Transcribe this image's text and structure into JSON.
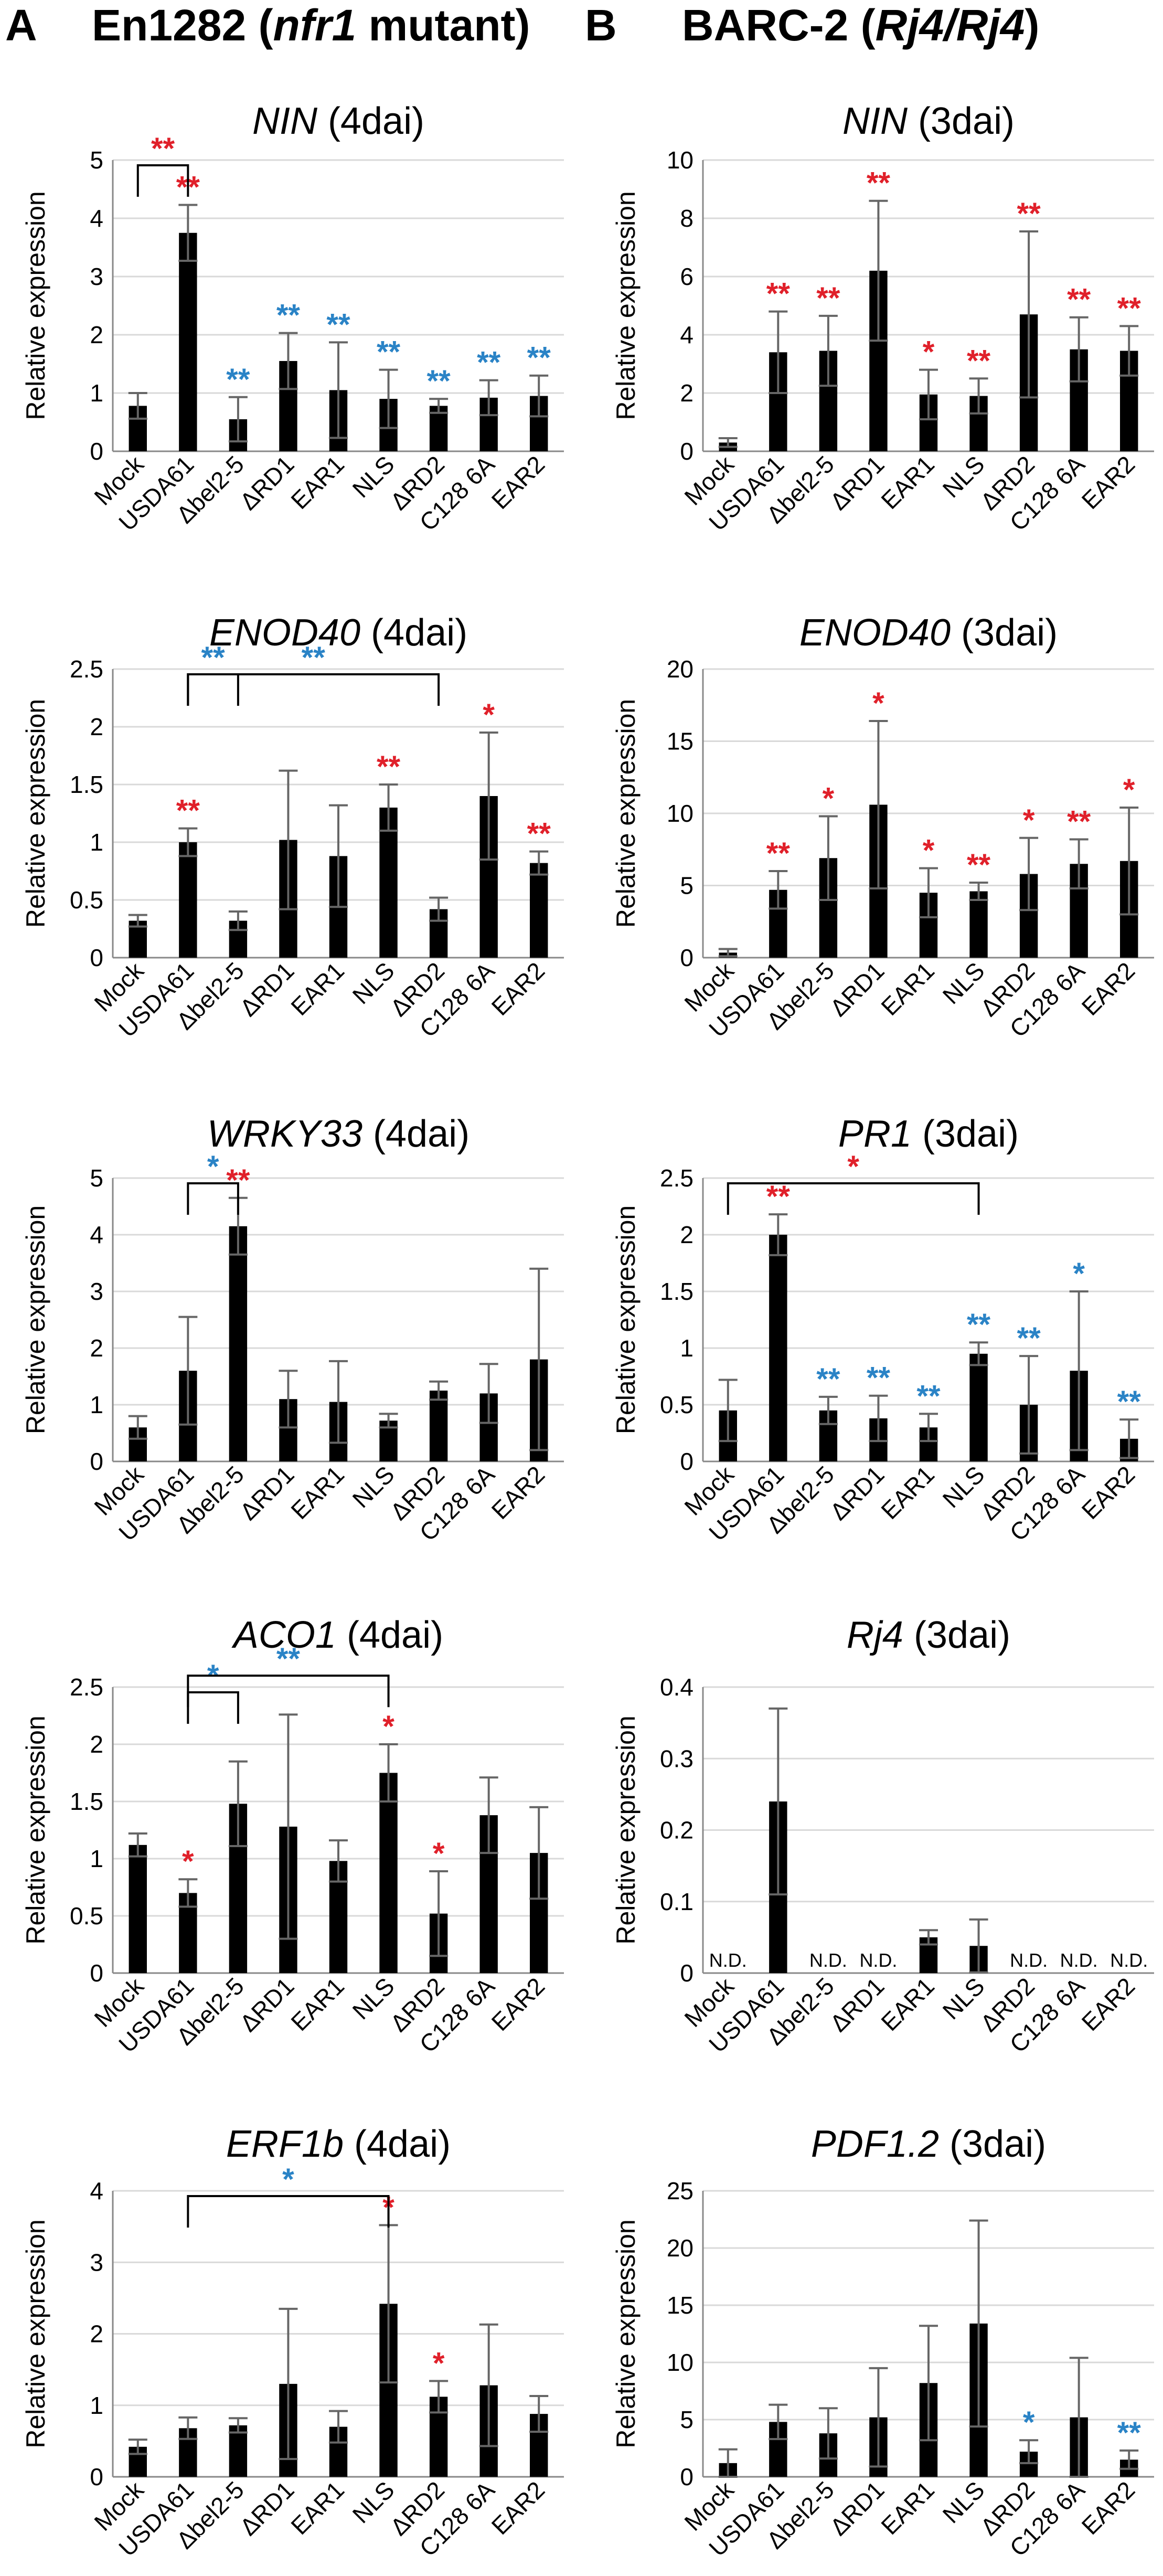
{
  "figure": {
    "panel_a": {
      "letter": "A",
      "title_pre": "En1282 (",
      "title_it": "nfr1",
      "title_post": " mutant)"
    },
    "panel_b": {
      "letter": "B",
      "title_pre": "BARC-2 (",
      "title_it": "Rj4/Rj4",
      "title_post": ")"
    }
  },
  "colors": {
    "bar": "#000000",
    "grid": "#d9d9d9",
    "sig_red": "#e0202a",
    "sig_blue": "#2a83c6",
    "err": "#666666",
    "axis": "#888888"
  },
  "ylabel": "Relative expression",
  "categories": [
    "Mock",
    "USDA61",
    "Δbel2-5",
    "ΔRD1",
    "EAR1",
    "NLS",
    "ΔRD2",
    "C128 6A",
    "EAR2"
  ],
  "chart_data": [
    {
      "id": "a1",
      "type": "bar",
      "gene": "NIN",
      "cond": " (4dai)",
      "title": "NIN (4dai)",
      "ylabel": "Relative expression",
      "categories": [
        "Mock",
        "USDA61",
        "Δbel2-5",
        "ΔRD1",
        "EAR1",
        "NLS",
        "ΔRD2",
        "C128 6A",
        "EAR2"
      ],
      "values": [
        0.78,
        3.75,
        0.55,
        1.55,
        1.05,
        0.9,
        0.78,
        0.92,
        0.95
      ],
      "err": [
        0.22,
        0.48,
        0.38,
        0.48,
        0.82,
        0.5,
        0.12,
        0.3,
        0.35
      ],
      "ylim": [
        0,
        5
      ],
      "yticks": [
        "0",
        "1",
        "2",
        "3",
        "4",
        "5"
      ],
      "sig": [
        "",
        "**",
        "**",
        "**",
        "**",
        "**",
        "**",
        "**",
        "**"
      ],
      "sig_color": [
        "",
        "red",
        "blue",
        "blue",
        "blue",
        "blue",
        "blue",
        "blue",
        "blue"
      ],
      "brackets": [
        {
          "from": 0,
          "to": 1,
          "level": 4.65,
          "text": "**",
          "color": "red"
        }
      ]
    },
    {
      "id": "b1",
      "type": "bar",
      "gene": "NIN",
      "cond": " (3dai)",
      "title": "NIN (3dai)",
      "ylabel": "Relative expression",
      "categories": [
        "Mock",
        "USDA61",
        "Δbel2-5",
        "ΔRD1",
        "EAR1",
        "NLS",
        "ΔRD2",
        "C128 6A",
        "EAR2"
      ],
      "values": [
        0.3,
        3.4,
        3.45,
        6.2,
        1.95,
        1.9,
        4.7,
        3.5,
        3.45
      ],
      "err": [
        0.15,
        1.4,
        1.2,
        2.4,
        0.85,
        0.6,
        2.85,
        1.1,
        0.85
      ],
      "ylim": [
        0,
        10
      ],
      "yticks": [
        "0",
        "2",
        "4",
        "6",
        "8",
        "10"
      ],
      "sig": [
        "",
        "**",
        "**",
        "**",
        "*",
        "**",
        "**",
        "**",
        "**"
      ],
      "sig_color": [
        "",
        "red",
        "red",
        "red",
        "red",
        "red",
        "red",
        "red",
        "red"
      ],
      "brackets": []
    },
    {
      "id": "a2",
      "type": "bar",
      "gene": "ENOD40",
      "cond": " (4dai)",
      "title": "ENOD40 (4dai)",
      "ylabel": "Relative expression",
      "categories": [
        "Mock",
        "USDA61",
        "Δbel2-5",
        "ΔRD1",
        "EAR1",
        "NLS",
        "ΔRD2",
        "C128 6A",
        "EAR2"
      ],
      "values": [
        0.32,
        1.0,
        0.32,
        1.02,
        0.88,
        1.3,
        0.42,
        1.4,
        0.82
      ],
      "err": [
        0.05,
        0.12,
        0.08,
        0.6,
        0.44,
        0.2,
        0.1,
        0.55,
        0.1
      ],
      "ylim": [
        0,
        2.5
      ],
      "yticks": [
        "0",
        "0.5",
        "1",
        "1.5",
        "2",
        "2.5"
      ],
      "sig": [
        "",
        "**",
        "",
        "",
        "",
        "**",
        "",
        "*",
        "**"
      ],
      "sig_color": [
        "",
        "red",
        "",
        "",
        "",
        "red",
        "",
        "red",
        "red"
      ],
      "brackets": [
        {
          "from": 1,
          "to": 2,
          "level": 1.88,
          "text": "**",
          "color": "blue"
        },
        {
          "from": 1,
          "to": 6,
          "level": 2.3,
          "text": "**",
          "color": "blue"
        }
      ]
    },
    {
      "id": "b2",
      "type": "bar",
      "gene": "ENOD40",
      "cond": " (3dai)",
      "title": "ENOD40 (3dai)",
      "ylabel": "Relative expression",
      "categories": [
        "Mock",
        "USDA61",
        "Δbel2-5",
        "ΔRD1",
        "EAR1",
        "NLS",
        "ΔRD2",
        "C128 6A",
        "EAR2"
      ],
      "values": [
        0.35,
        4.7,
        6.9,
        10.6,
        4.5,
        4.6,
        5.8,
        6.5,
        6.7
      ],
      "err": [
        0.25,
        1.3,
        2.9,
        5.8,
        1.7,
        0.6,
        2.5,
        1.7,
        3.7
      ],
      "ylim": [
        0,
        20
      ],
      "yticks": [
        "0",
        "5",
        "10",
        "15",
        "20"
      ],
      "sig": [
        "",
        "**",
        "*",
        "*",
        "*",
        "**",
        "*",
        "**",
        "*"
      ],
      "sig_color": [
        "",
        "red",
        "red",
        "red",
        "red",
        "red",
        "red",
        "red",
        "red"
      ],
      "brackets": []
    },
    {
      "id": "a3",
      "type": "bar",
      "gene": "WRKY33",
      "cond": " (4dai)",
      "title": "WRKY33 (4dai)",
      "ylabel": "Relative expression",
      "categories": [
        "Mock",
        "USDA61",
        "Δbel2-5",
        "ΔRD1",
        "EAR1",
        "NLS",
        "ΔRD2",
        "C128 6A",
        "EAR2"
      ],
      "values": [
        0.6,
        1.6,
        4.15,
        1.1,
        1.05,
        0.72,
        1.25,
        1.2,
        1.8
      ],
      "err": [
        0.2,
        0.95,
        0.5,
        0.5,
        0.72,
        0.12,
        0.16,
        0.52,
        1.6
      ],
      "ylim": [
        0,
        5
      ],
      "yticks": [
        "0",
        "1",
        "2",
        "3",
        "4",
        "5"
      ],
      "sig": [
        "",
        "",
        "**",
        "",
        "",
        "",
        "",
        "",
        ""
      ],
      "sig_color": [
        "",
        "",
        "red",
        "",
        "",
        "",
        "",
        "",
        ""
      ],
      "brackets": [
        {
          "from": 1,
          "to": 2,
          "level": 4.85,
          "text": "*",
          "color": "blue"
        }
      ]
    },
    {
      "id": "b3",
      "type": "bar",
      "gene": "PR1",
      "cond": " (3dai)",
      "title": "PR1 (3dai)",
      "ylabel": "Relative expression",
      "categories": [
        "Mock",
        "USDA61",
        "Δbel2-5",
        "ΔRD1",
        "EAR1",
        "NLS",
        "ΔRD2",
        "C128 6A",
        "EAR2"
      ],
      "values": [
        0.45,
        2.0,
        0.45,
        0.38,
        0.3,
        0.95,
        0.5,
        0.8,
        0.2
      ],
      "err": [
        0.27,
        0.18,
        0.12,
        0.2,
        0.12,
        0.1,
        0.43,
        0.7,
        0.17
      ],
      "ylim": [
        0,
        2.5
      ],
      "yticks": [
        "0",
        "0.5",
        "1",
        "1.5",
        "2",
        "2.5"
      ],
      "sig": [
        "",
        "**",
        "**",
        "**",
        "**",
        "**",
        "**",
        "*",
        "**"
      ],
      "sig_color": [
        "",
        "red",
        "blue",
        "blue",
        "blue",
        "blue",
        "blue",
        "blue",
        "blue"
      ],
      "brackets": [
        {
          "from": 0,
          "to": 5,
          "level": 2.42,
          "text": "*",
          "color": "red"
        }
      ]
    },
    {
      "id": "a4",
      "type": "bar",
      "gene": "ACO1",
      "cond": " (4dai)",
      "title": "ACO1 (4dai)",
      "ylabel": "Relative expression",
      "categories": [
        "Mock",
        "USDA61",
        "Δbel2-5",
        "ΔRD1",
        "EAR1",
        "NLS",
        "ΔRD2",
        "C128 6A",
        "EAR2"
      ],
      "values": [
        1.12,
        0.7,
        1.48,
        1.28,
        0.98,
        1.75,
        0.52,
        1.38,
        1.05
      ],
      "err": [
        0.1,
        0.12,
        0.37,
        0.98,
        0.18,
        0.25,
        0.37,
        0.33,
        0.4
      ],
      "ylim": [
        0,
        2.5
      ],
      "yticks": [
        "0",
        "0.5",
        "1",
        "1.5",
        "2",
        "2.5"
      ],
      "sig": [
        "",
        "*",
        "",
        "",
        "",
        "*",
        "*",
        "",
        ""
      ],
      "sig_color": [
        "",
        "red",
        "",
        "",
        "",
        "red",
        "red",
        "",
        ""
      ],
      "brackets": [
        {
          "from": 1,
          "to": 2,
          "level": 2.2,
          "text": "*",
          "color": "blue"
        },
        {
          "from": 1,
          "to": 5,
          "level": 2.6,
          "text": "**",
          "color": "blue"
        }
      ]
    },
    {
      "id": "b4",
      "type": "bar",
      "gene": "Rj4",
      "cond": " (3dai)",
      "title": "Rj4 (3dai)",
      "ylabel": "Relative expression",
      "categories": [
        "Mock",
        "USDA61",
        "Δbel2-5",
        "ΔRD1",
        "EAR1",
        "NLS",
        "ΔRD2",
        "C128 6A",
        "EAR2"
      ],
      "values": [
        0,
        0.24,
        0,
        0,
        0.05,
        0.038,
        0,
        0,
        0
      ],
      "err": [
        0,
        0.13,
        0,
        0,
        0.01,
        0.037,
        0,
        0,
        0
      ],
      "ylim": [
        0,
        0.4
      ],
      "yticks": [
        "0",
        "0.1",
        "0.2",
        "0.3",
        "0.4"
      ],
      "nd": [
        true,
        false,
        true,
        true,
        false,
        false,
        true,
        true,
        true
      ],
      "nd_label": "N.D.",
      "sig": [
        "",
        "",
        "",
        "",
        "",
        "",
        "",
        "",
        ""
      ],
      "sig_color": [
        "",
        "",
        "",
        "",
        "",
        "",
        "",
        "",
        ""
      ],
      "brackets": []
    },
    {
      "id": "a5",
      "type": "bar",
      "gene": "ERF1b",
      "cond": " (4dai)",
      "title": "ERF1b (4dai)",
      "ylabel": "Relative expression",
      "categories": [
        "Mock",
        "USDA61",
        "Δbel2-5",
        "ΔRD1",
        "EAR1",
        "NLS",
        "ΔRD2",
        "C128 6A",
        "EAR2"
      ],
      "values": [
        0.42,
        0.68,
        0.72,
        1.3,
        0.7,
        2.42,
        1.12,
        1.28,
        0.88
      ],
      "err": [
        0.1,
        0.15,
        0.1,
        1.05,
        0.22,
        1.1,
        0.22,
        0.85,
        0.25
      ],
      "ylim": [
        0,
        4
      ],
      "yticks": [
        "0",
        "1",
        "2",
        "3",
        "4"
      ],
      "sig": [
        "",
        "",
        "",
        "",
        "",
        "*",
        "*",
        "",
        ""
      ],
      "sig_color": [
        "",
        "",
        "",
        "",
        "",
        "red",
        "red",
        "",
        ""
      ],
      "brackets": [
        {
          "from": 1,
          "to": 5,
          "level": 3.75,
          "text": "*",
          "color": "blue"
        }
      ]
    },
    {
      "id": "b5",
      "type": "bar",
      "gene": "PDF1.2",
      "cond": " (3dai)",
      "title": "PDF1.2 (3dai)",
      "ylabel": "Relative expression",
      "categories": [
        "Mock",
        "USDA61",
        "Δbel2-5",
        "ΔRD1",
        "EAR1",
        "NLS",
        "ΔRD2",
        "C128 6A",
        "EAR2"
      ],
      "values": [
        1.2,
        4.8,
        3.8,
        5.2,
        8.2,
        13.4,
        2.2,
        5.2,
        1.5
      ],
      "err": [
        1.2,
        1.5,
        2.2,
        4.3,
        5.0,
        9.0,
        1.0,
        5.2,
        0.8
      ],
      "ylim": [
        0,
        25
      ],
      "yticks": [
        "0",
        "5",
        "10",
        "15",
        "20",
        "25"
      ],
      "sig": [
        "",
        "",
        "",
        "",
        "",
        "",
        "*",
        "",
        "**"
      ],
      "sig_color": [
        "",
        "",
        "",
        "",
        "",
        "",
        "blue",
        "",
        "blue"
      ],
      "brackets": []
    }
  ]
}
